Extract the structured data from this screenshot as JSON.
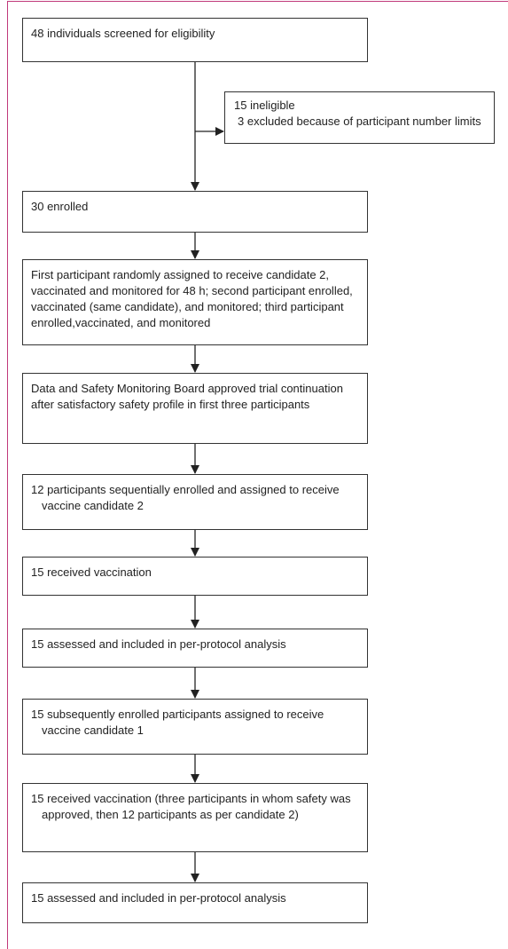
{
  "boxes": [
    {
      "text": "48 individuals screened for eligibility"
    },
    {
      "text": "30 enrolled"
    },
    {
      "text": "First participant randomly assigned to receive candidate 2, vaccinated and monitored for 48 h; second participant enrolled, vaccinated (same candidate), and monitored; third participant enrolled,vaccinated, and monitored"
    },
    {
      "text": "Data and Safety Monitoring Board approved trial continuation after satisfactory safety profile in first three participants"
    },
    {
      "text": "12 participants sequentially enrolled and assigned to receive vaccine candidate 2"
    },
    {
      "text": "15 received vaccination"
    },
    {
      "text": "15 assessed and included in per-protocol analysis"
    },
    {
      "text": "15 subsequently enrolled participants assigned to receive vaccine candidate 1"
    },
    {
      "text": "15 received vaccination (three participants in whom safety was approved, then 12 participants as per candidate 2)"
    },
    {
      "text": "15 assessed and included in per-protocol analysis"
    }
  ],
  "side_box": {
    "lines": [
      "15 ineligible",
      "3 excluded because of participant number limits"
    ]
  }
}
